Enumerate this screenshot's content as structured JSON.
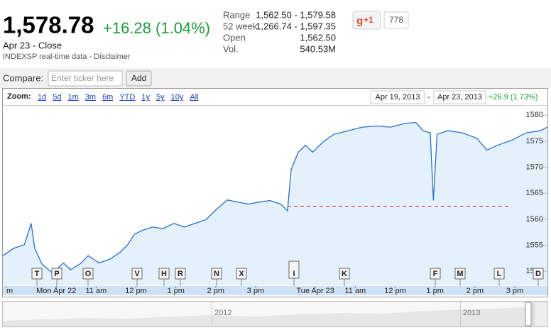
{
  "header": {
    "price": "1,578.78",
    "change": "+16.28 (1.04%)",
    "date": "Apr 23 - Close",
    "source": "INDEXSP real-time data - Disclaimer"
  },
  "stats": [
    {
      "label": "Range",
      "value": "1,562.50 - 1,579.58"
    },
    {
      "label": "52 week",
      "value": "1,266.74 - 1,597.35"
    },
    {
      "label": "Open",
      "value": "1,562.50"
    },
    {
      "label": "Vol.",
      "value": "540.53M"
    }
  ],
  "social": {
    "button": "+1",
    "count": "778"
  },
  "compare": {
    "label": "Compare:",
    "placeholder": "Enter ticker here",
    "button": "Add"
  },
  "zoom": {
    "label": "Zoom:",
    "options": [
      "1d",
      "5d",
      "1m",
      "3m",
      "6m",
      "YTD",
      "1y",
      "5y",
      "10y",
      "All"
    ]
  },
  "range": {
    "from": "Apr 19, 2013",
    "separator": "-",
    "to": "Apr 23, 2013",
    "change": "+26.9 (1.73%)"
  },
  "chart": {
    "type": "line",
    "color": "#2a6fc9",
    "fill": "#e4f1fb",
    "x": [
      -0.84,
      -0.57,
      -0.3,
      -0.13,
      -0.04,
      0.14,
      0.41,
      0.68,
      0.86,
      1.13,
      1.3,
      1.57,
      1.84,
      2.11,
      2.29,
      2.46,
      2.64,
      2.91,
      3.18,
      3.45,
      3.71,
      3.98,
      4.25,
      4.52,
      4.79,
      5.05,
      5.32,
      5.59,
      5.86,
      6.13,
      6.3,
      6.39,
      6.57,
      6.75,
      6.93,
      7.2,
      7.46,
      7.82,
      8.18,
      8.54,
      8.89,
      9.25,
      9.52,
      9.7,
      9.88,
      9.96,
      10.05,
      10.32,
      10.68,
      11.04,
      11.3,
      11.57,
      11.93,
      12.29,
      12.64,
      12.82
    ],
    "values": [
      1553.0,
      1554.4,
      1555.1,
      1559.2,
      1554.4,
      1551.4,
      1549.6,
      1551.6,
      1550.3,
      1551.6,
      1553.0,
      1551.6,
      1552.3,
      1553.7,
      1555.1,
      1557.1,
      1557.8,
      1558.5,
      1558.2,
      1559.2,
      1558.5,
      1559.2,
      1559.9,
      1561.9,
      1563.7,
      1563.3,
      1562.9,
      1563.3,
      1563.6,
      1562.9,
      1561.6,
      1569.5,
      1572.9,
      1574.2,
      1572.9,
      1574.9,
      1576.3,
      1577.0,
      1577.7,
      1577.9,
      1577.7,
      1578.4,
      1578.6,
      1577.0,
      1576.6,
      1563.6,
      1576.3,
      1577.0,
      1576.6,
      1575.6,
      1573.3,
      1574.2,
      1575.2,
      1576.6,
      1577.0,
      1577.7
    ],
    "xlim": [
      -0.84,
      12.82
    ],
    "ylim": [
      1547.3,
      1581.8
    ],
    "yticks": [
      1550,
      1555,
      1560,
      1565,
      1570,
      1575,
      1580
    ],
    "xticks": [
      {
        "value": -0.75,
        "label": "m"
      },
      {
        "value": 0.5,
        "label": "Mon Apr 22"
      },
      {
        "value": 1.5,
        "label": "11 am"
      },
      {
        "value": 2.5,
        "label": "12 pm"
      },
      {
        "value": 3.5,
        "label": "1 pm"
      },
      {
        "value": 4.5,
        "label": "2 pm"
      },
      {
        "value": 5.5,
        "label": "3 pm"
      },
      {
        "value": 7,
        "label": "Tue Apr 23"
      },
      {
        "value": 8,
        "label": "11 am"
      },
      {
        "value": 9,
        "label": "12 pm"
      },
      {
        "value": 10,
        "label": "1 pm"
      },
      {
        "value": 11,
        "label": "2 pm"
      },
      {
        "value": 12,
        "label": "3 pm"
      }
    ],
    "prev_close": 1562.5
  },
  "events": [
    "T",
    "P",
    "O",
    "V",
    "H",
    "R",
    "N",
    "X",
    "I",
    "K",
    "F",
    "M",
    "L",
    "D"
  ],
  "navigator": {
    "labels": [
      "2012",
      "2013"
    ]
  }
}
